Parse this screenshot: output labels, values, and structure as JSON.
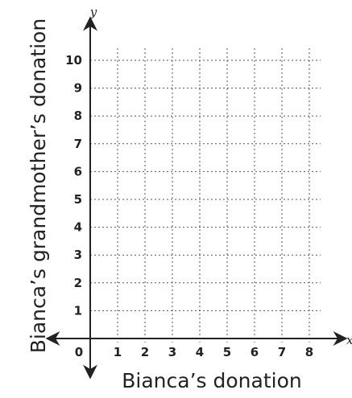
{
  "chart_data": {
    "type": "scatter",
    "title": "",
    "xlabel": "Bianca’s donation",
    "ylabel": "Bianca’s grandmother’s donation",
    "x_var": "x",
    "y_var": "y",
    "xlim": [
      0,
      8
    ],
    "ylim": [
      0,
      10
    ],
    "x_ticks": [
      "0",
      "1",
      "2",
      "3",
      "4",
      "5",
      "6",
      "7",
      "8"
    ],
    "y_ticks": [
      "1",
      "2",
      "3",
      "4",
      "5",
      "6",
      "7",
      "8",
      "9",
      "10"
    ],
    "grid": true,
    "series": []
  }
}
